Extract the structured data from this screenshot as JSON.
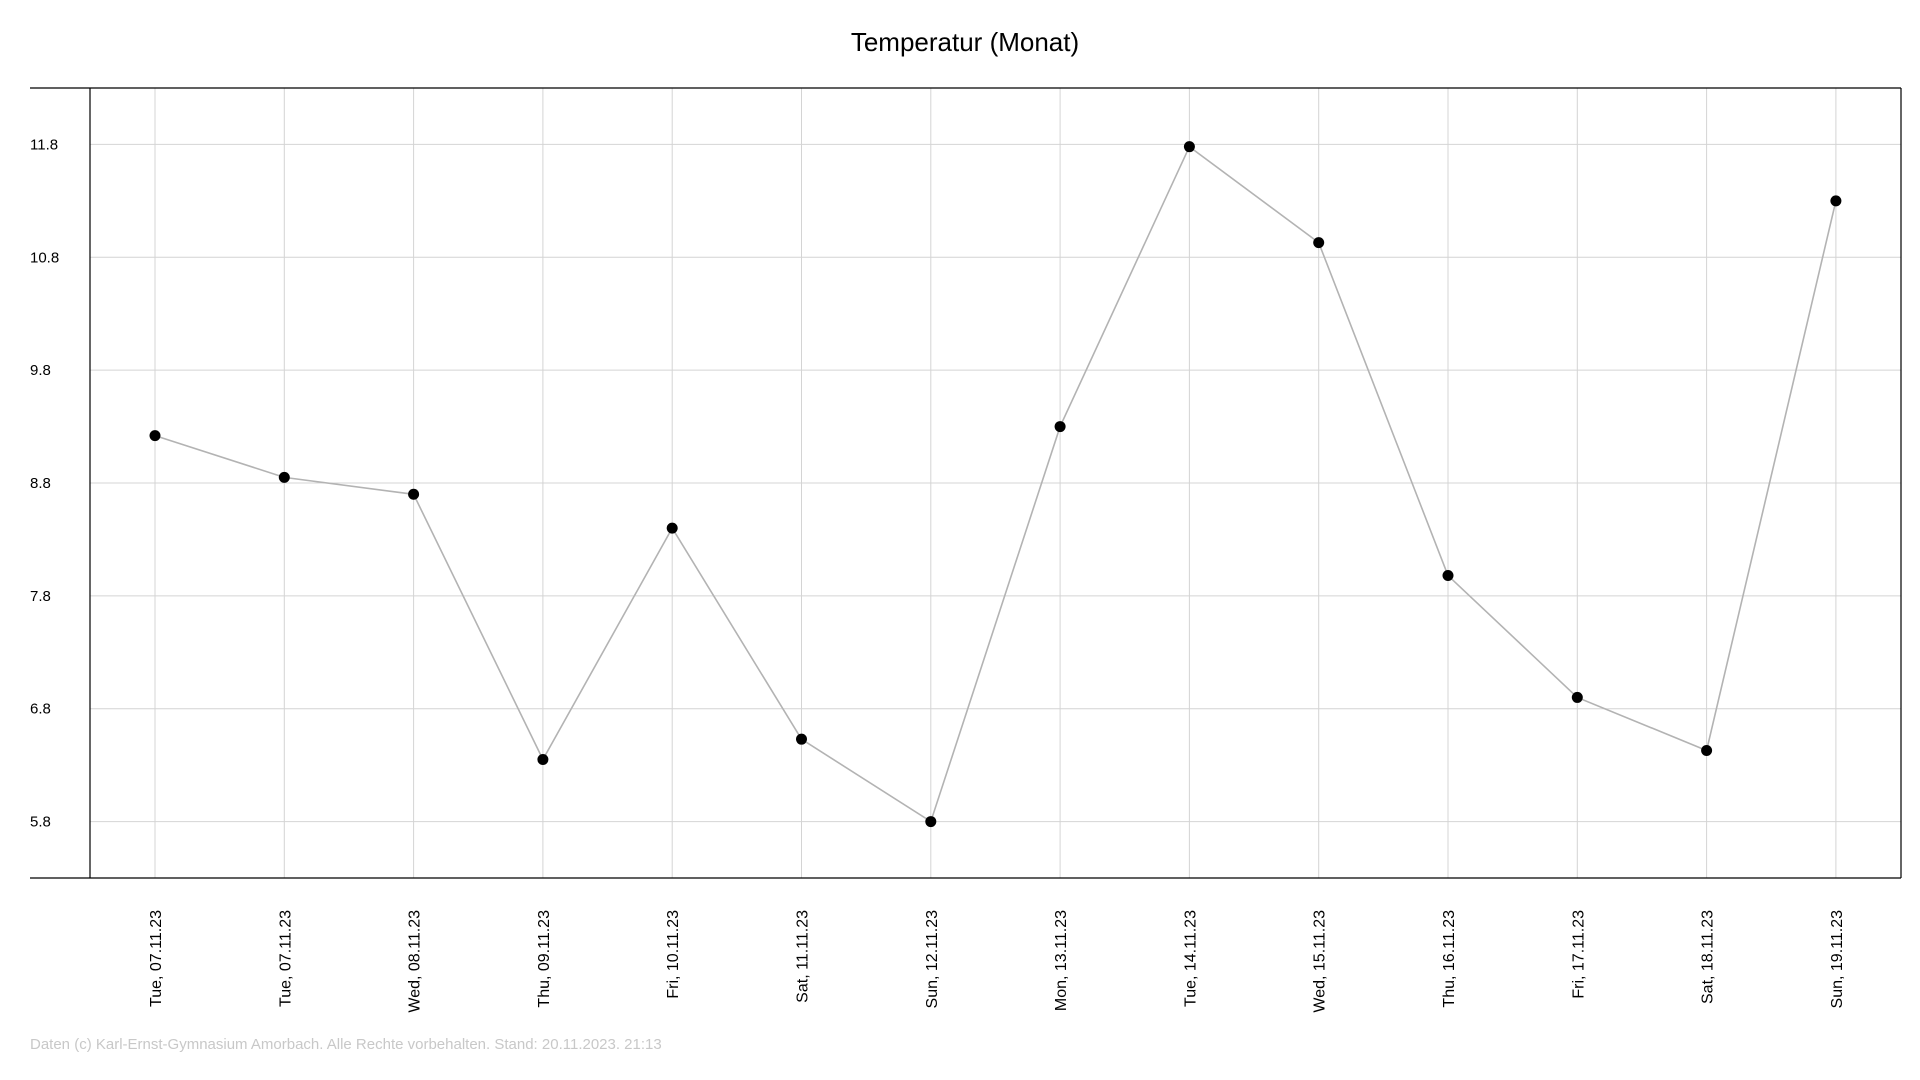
{
  "chart_data": {
    "type": "line",
    "title": "Temperatur (Monat)",
    "xlabel": "",
    "ylabel": "",
    "categories": [
      "Tue, 07.11.23",
      "Tue, 07.11.23",
      "Wed, 08.11.23",
      "Thu, 09.11.23",
      "Fri, 10.11.23",
      "Sat, 11.11.23",
      "Sun, 12.11.23",
      "Mon, 13.11.23",
      "Tue, 14.11.23",
      "Wed, 15.11.23",
      "Thu, 16.11.23",
      "Fri, 17.11.23",
      "Sat, 18.11.23",
      "Sun, 19.11.23"
    ],
    "series": [
      {
        "values": [
          9.22,
          8.85,
          8.7,
          6.35,
          8.4,
          6.53,
          5.8,
          9.3,
          11.78,
          10.93,
          7.98,
          6.9,
          6.43,
          11.3
        ]
      }
    ],
    "yticks": [
      "5.8",
      "6.8",
      "7.8",
      "8.8",
      "9.8",
      "10.8",
      "11.8"
    ],
    "ylim": [
      5.3,
      12.3
    ],
    "grid": true,
    "legend": "none",
    "line_color": "#b3b3b3",
    "marker_color": "#000000"
  },
  "footer": "Daten (c) Karl-Ernst-Gymnasium Amorbach. Alle Rechte vorbehalten. Stand: 20.11.2023. 21:13"
}
